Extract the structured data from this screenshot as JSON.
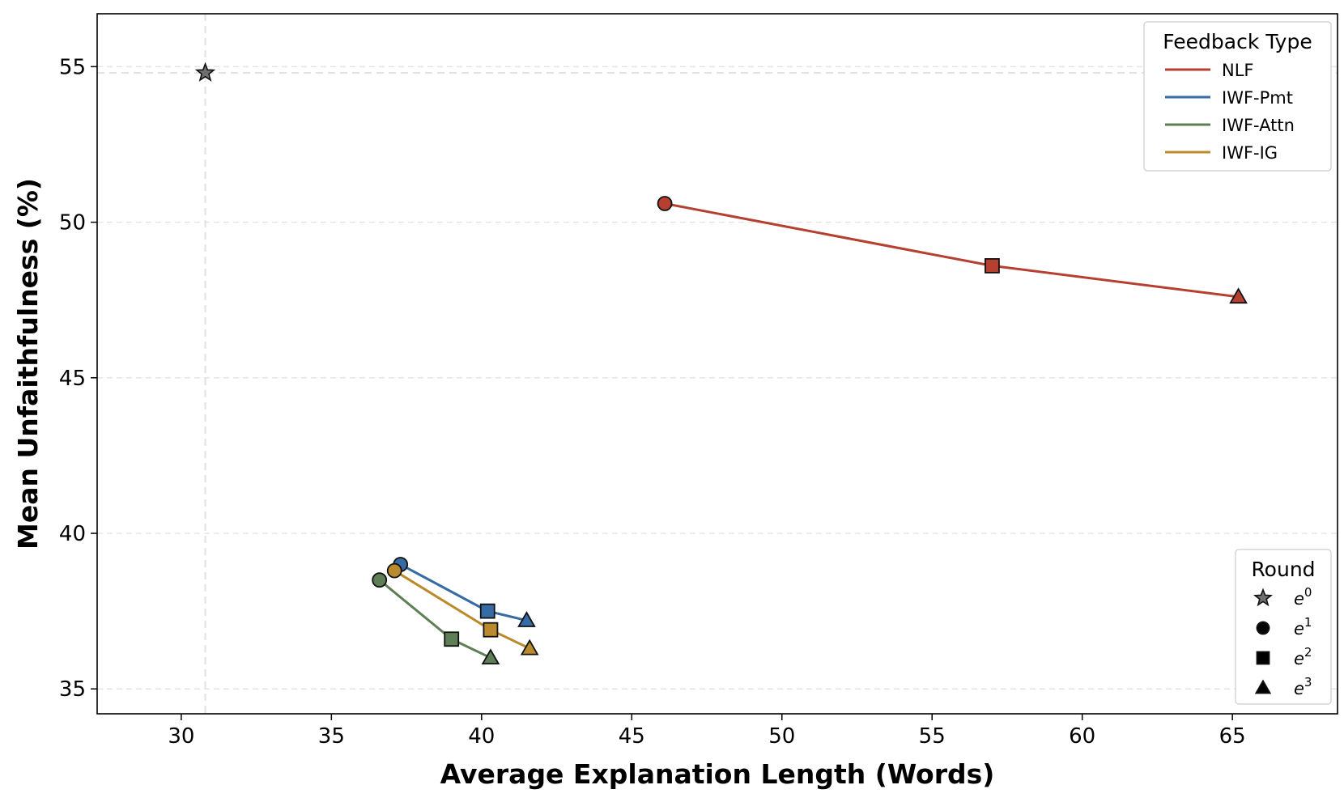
{
  "chart_data": {
    "type": "line",
    "xlabel": "Average Explanation Length (Words)",
    "ylabel": "Mean Unfaithfulness (%)",
    "xlim": [
      27.2,
      68.5
    ],
    "ylim": [
      34.2,
      56.7
    ],
    "xticks": [
      "30",
      "35",
      "40",
      "45",
      "50",
      "55",
      "60",
      "65"
    ],
    "yticks": [
      "35",
      "40",
      "45",
      "50",
      "55"
    ],
    "grid": true,
    "baseline": {
      "x": 30.8,
      "y": 54.8,
      "round": "e0",
      "color": "#707070"
    },
    "series": [
      {
        "name": "NLF",
        "color": "#b5402f",
        "points": [
          {
            "x": 46.1,
            "y": 50.6,
            "round": "e1"
          },
          {
            "x": 57.0,
            "y": 48.6,
            "round": "e2"
          },
          {
            "x": 65.2,
            "y": 47.6,
            "round": "e3"
          }
        ]
      },
      {
        "name": "IWF-Pmt",
        "color": "#366ba3",
        "points": [
          {
            "x": 37.3,
            "y": 39.0,
            "round": "e1"
          },
          {
            "x": 40.2,
            "y": 37.5,
            "round": "e2"
          },
          {
            "x": 41.5,
            "y": 37.2,
            "round": "e3"
          }
        ]
      },
      {
        "name": "IWF-Attn",
        "color": "#5e7e55",
        "points": [
          {
            "x": 36.6,
            "y": 38.5,
            "round": "e1"
          },
          {
            "x": 39.0,
            "y": 36.6,
            "round": "e2"
          },
          {
            "x": 40.3,
            "y": 36.0,
            "round": "e3"
          }
        ]
      },
      {
        "name": "IWF-IG",
        "color": "#b98b2c",
        "points": [
          {
            "x": 37.1,
            "y": 38.8,
            "round": "e1"
          },
          {
            "x": 40.3,
            "y": 36.9,
            "round": "e2"
          },
          {
            "x": 41.6,
            "y": 36.3,
            "round": "e3"
          }
        ]
      }
    ],
    "legend_feedback": {
      "title": "Feedback Type",
      "position": "top-right",
      "entries": [
        "NLF",
        "IWF-Pmt",
        "IWF-Attn",
        "IWF-IG"
      ]
    },
    "legend_round": {
      "title": "Round",
      "position": "bottom-right",
      "entries": [
        {
          "marker": "star",
          "label": "e",
          "sup": "0"
        },
        {
          "marker": "circle",
          "label": "e",
          "sup": "1"
        },
        {
          "marker": "square",
          "label": "e",
          "sup": "2"
        },
        {
          "marker": "triangle",
          "label": "e",
          "sup": "3"
        }
      ]
    }
  }
}
